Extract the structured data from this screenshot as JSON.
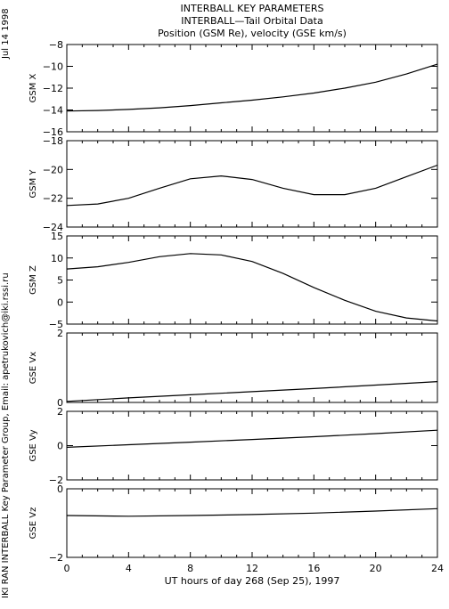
{
  "header": {
    "title1": "INTERBALL KEY PARAMETERS",
    "title2": "INTERBALL—Tail Orbital Data",
    "title3": "Position (GSM Re), velocity (GSE km/s)"
  },
  "date_label": "Jul 14 1998",
  "credit_label": "IKI RAN INTERBALL Key Parameter Group, Email: apetrukovich@iki.rssi.ru",
  "chart_data": {
    "type": "line",
    "title": "INTERBALL KEY PARAMETERS",
    "subtitle": "INTERBALL—Tail Orbital Data / Position (GSM Re), velocity (GSE km/s)",
    "xlabel": "UT hours of day 268 (Sep 25), 1997",
    "xlim": [
      0,
      24
    ],
    "xticks": [
      0,
      4,
      8,
      12,
      16,
      20,
      24
    ],
    "grid": false,
    "panels": [
      {
        "ylabel": "GSM X",
        "ylim": [
          -16,
          -8
        ],
        "yticks": [
          -16,
          -14,
          -12,
          -10,
          -8
        ],
        "x": [
          0,
          2,
          4,
          6,
          8,
          10,
          12,
          14,
          16,
          18,
          20,
          22,
          24
        ],
        "values": [
          -14.1,
          -14.05,
          -13.95,
          -13.8,
          -13.6,
          -13.35,
          -13.1,
          -12.8,
          -12.45,
          -12.0,
          -11.45,
          -10.7,
          -9.8
        ]
      },
      {
        "ylabel": "GSM Y",
        "ylim": [
          -24,
          -18
        ],
        "yticks": [
          -24,
          -22,
          -20,
          -18
        ],
        "x": [
          0,
          2,
          4,
          6,
          8,
          10,
          12,
          14,
          16,
          18,
          20,
          22,
          24
        ],
        "values": [
          -22.5,
          -22.4,
          -22.0,
          -21.3,
          -20.65,
          -20.45,
          -20.7,
          -21.3,
          -21.75,
          -21.75,
          -21.3,
          -20.5,
          -19.7
        ]
      },
      {
        "ylabel": "GSM Z",
        "ylim": [
          -5,
          15
        ],
        "yticks": [
          -5,
          0,
          5,
          10,
          15
        ],
        "x": [
          0,
          2,
          4,
          6,
          8,
          10,
          12,
          14,
          16,
          18,
          20,
          22,
          24
        ],
        "values": [
          7.5,
          8.0,
          9.0,
          10.3,
          11.0,
          10.7,
          9.2,
          6.5,
          3.3,
          0.4,
          -2.1,
          -3.6,
          -4.3
        ]
      },
      {
        "ylabel": "GSE Vx",
        "ylim": [
          0,
          2
        ],
        "yticks": [
          0,
          2
        ],
        "x": [
          0,
          4,
          8,
          12,
          16,
          20,
          24
        ],
        "values": [
          0.03,
          0.13,
          0.22,
          0.31,
          0.4,
          0.5,
          0.6
        ]
      },
      {
        "ylabel": "GSE Vy",
        "ylim": [
          -2,
          2
        ],
        "yticks": [
          -2,
          0,
          2
        ],
        "x": [
          0,
          4,
          8,
          12,
          16,
          20,
          24
        ],
        "values": [
          -0.1,
          0.05,
          0.2,
          0.36,
          0.52,
          0.7,
          0.9
        ]
      },
      {
        "ylabel": "GSE Vz",
        "ylim": [
          -2,
          0
        ],
        "yticks": [
          -2,
          0
        ],
        "x": [
          0,
          4,
          8,
          12,
          16,
          20,
          24
        ],
        "values": [
          -0.78,
          -0.8,
          -0.78,
          -0.75,
          -0.71,
          -0.65,
          -0.58
        ]
      }
    ]
  }
}
